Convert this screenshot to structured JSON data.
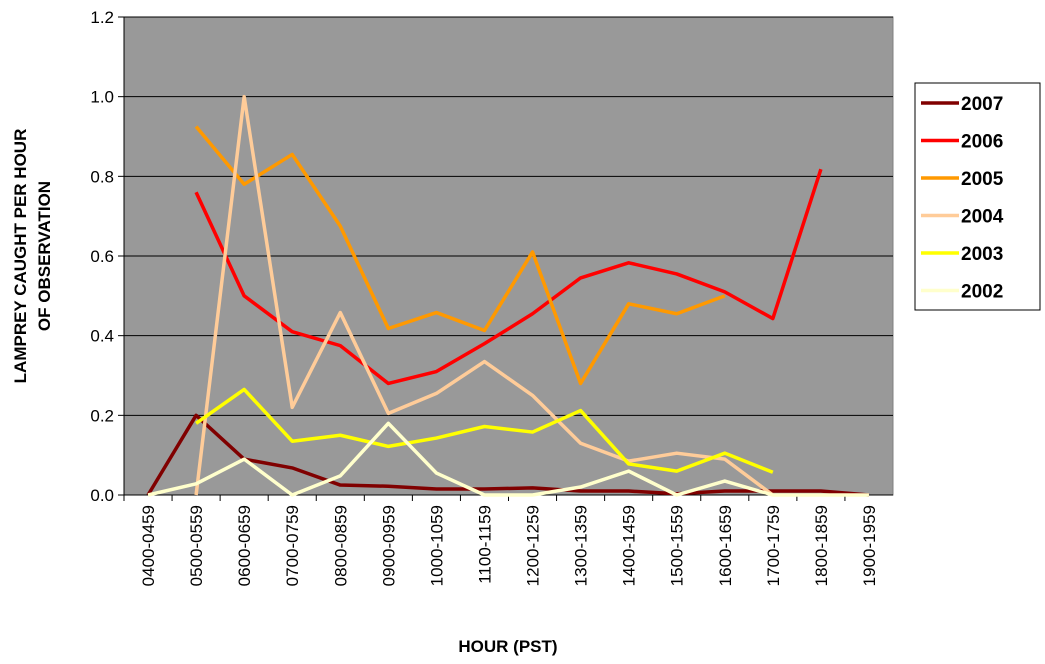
{
  "chart_data": {
    "type": "line",
    "xlabel": "HOUR (PST)",
    "ylabel": [
      "LAMPREY CAUGHT PER HOUR",
      "OF OBSERVATION"
    ],
    "categories": [
      "0400-0459",
      "0500-0559",
      "0600-0659",
      "0700-0759",
      "0800-0859",
      "0900-0959",
      "1000-1059",
      "1100-1159",
      "1200-1259",
      "1300-1359",
      "1400-1459",
      "1500-1559",
      "1600-1659",
      "1700-1759",
      "1800-1859",
      "1900-1959"
    ],
    "ylim": [
      0,
      1.2
    ],
    "yticks": [
      {
        "value": 0,
        "label": "0.0"
      },
      0.2,
      0.4,
      0.6,
      0.8,
      {
        "value": 1,
        "label": "1.0"
      },
      1.2
    ],
    "grid": true,
    "legend": "right",
    "plot_background": "#999999",
    "series": [
      {
        "name": "2007",
        "color": "#800000",
        "values": [
          0,
          0.2,
          0.09,
          0.068,
          0.025,
          0.022,
          0.015,
          0.015,
          0.018,
          0.01,
          0.01,
          0.003,
          0.01,
          0.01,
          0.01,
          0
        ]
      },
      {
        "name": "2006",
        "color": "#ff0000",
        "values": [
          null,
          0.76,
          0.5,
          0.41,
          0.375,
          0.28,
          0.31,
          0.38,
          0.455,
          0.545,
          0.583,
          0.555,
          0.51,
          0.443,
          0.818,
          null
        ]
      },
      {
        "name": "2005",
        "color": "#ff9900",
        "values": [
          null,
          0.925,
          0.78,
          0.855,
          0.675,
          0.418,
          0.458,
          0.413,
          0.61,
          0.28,
          0.48,
          0.455,
          0.5,
          null,
          null,
          null
        ]
      },
      {
        "name": "2004",
        "color": "#ffcc99",
        "values": [
          null,
          0,
          1.0,
          0.22,
          0.458,
          0.205,
          0.255,
          0.335,
          0.25,
          0.13,
          0.085,
          0.105,
          0.09,
          0,
          null,
          null
        ]
      },
      {
        "name": "2003",
        "color": "#ffff00",
        "values": [
          null,
          0.18,
          0.265,
          0.135,
          0.15,
          0.122,
          0.143,
          0.172,
          0.158,
          0.212,
          0.078,
          0.06,
          0.105,
          0.057,
          null,
          null
        ]
      },
      {
        "name": "2002",
        "color": "#ffffcc",
        "values": [
          0,
          0.028,
          0.09,
          0,
          0.048,
          0.18,
          0.055,
          0,
          0,
          0.02,
          0.06,
          0,
          0.035,
          0,
          0,
          0
        ]
      }
    ]
  }
}
